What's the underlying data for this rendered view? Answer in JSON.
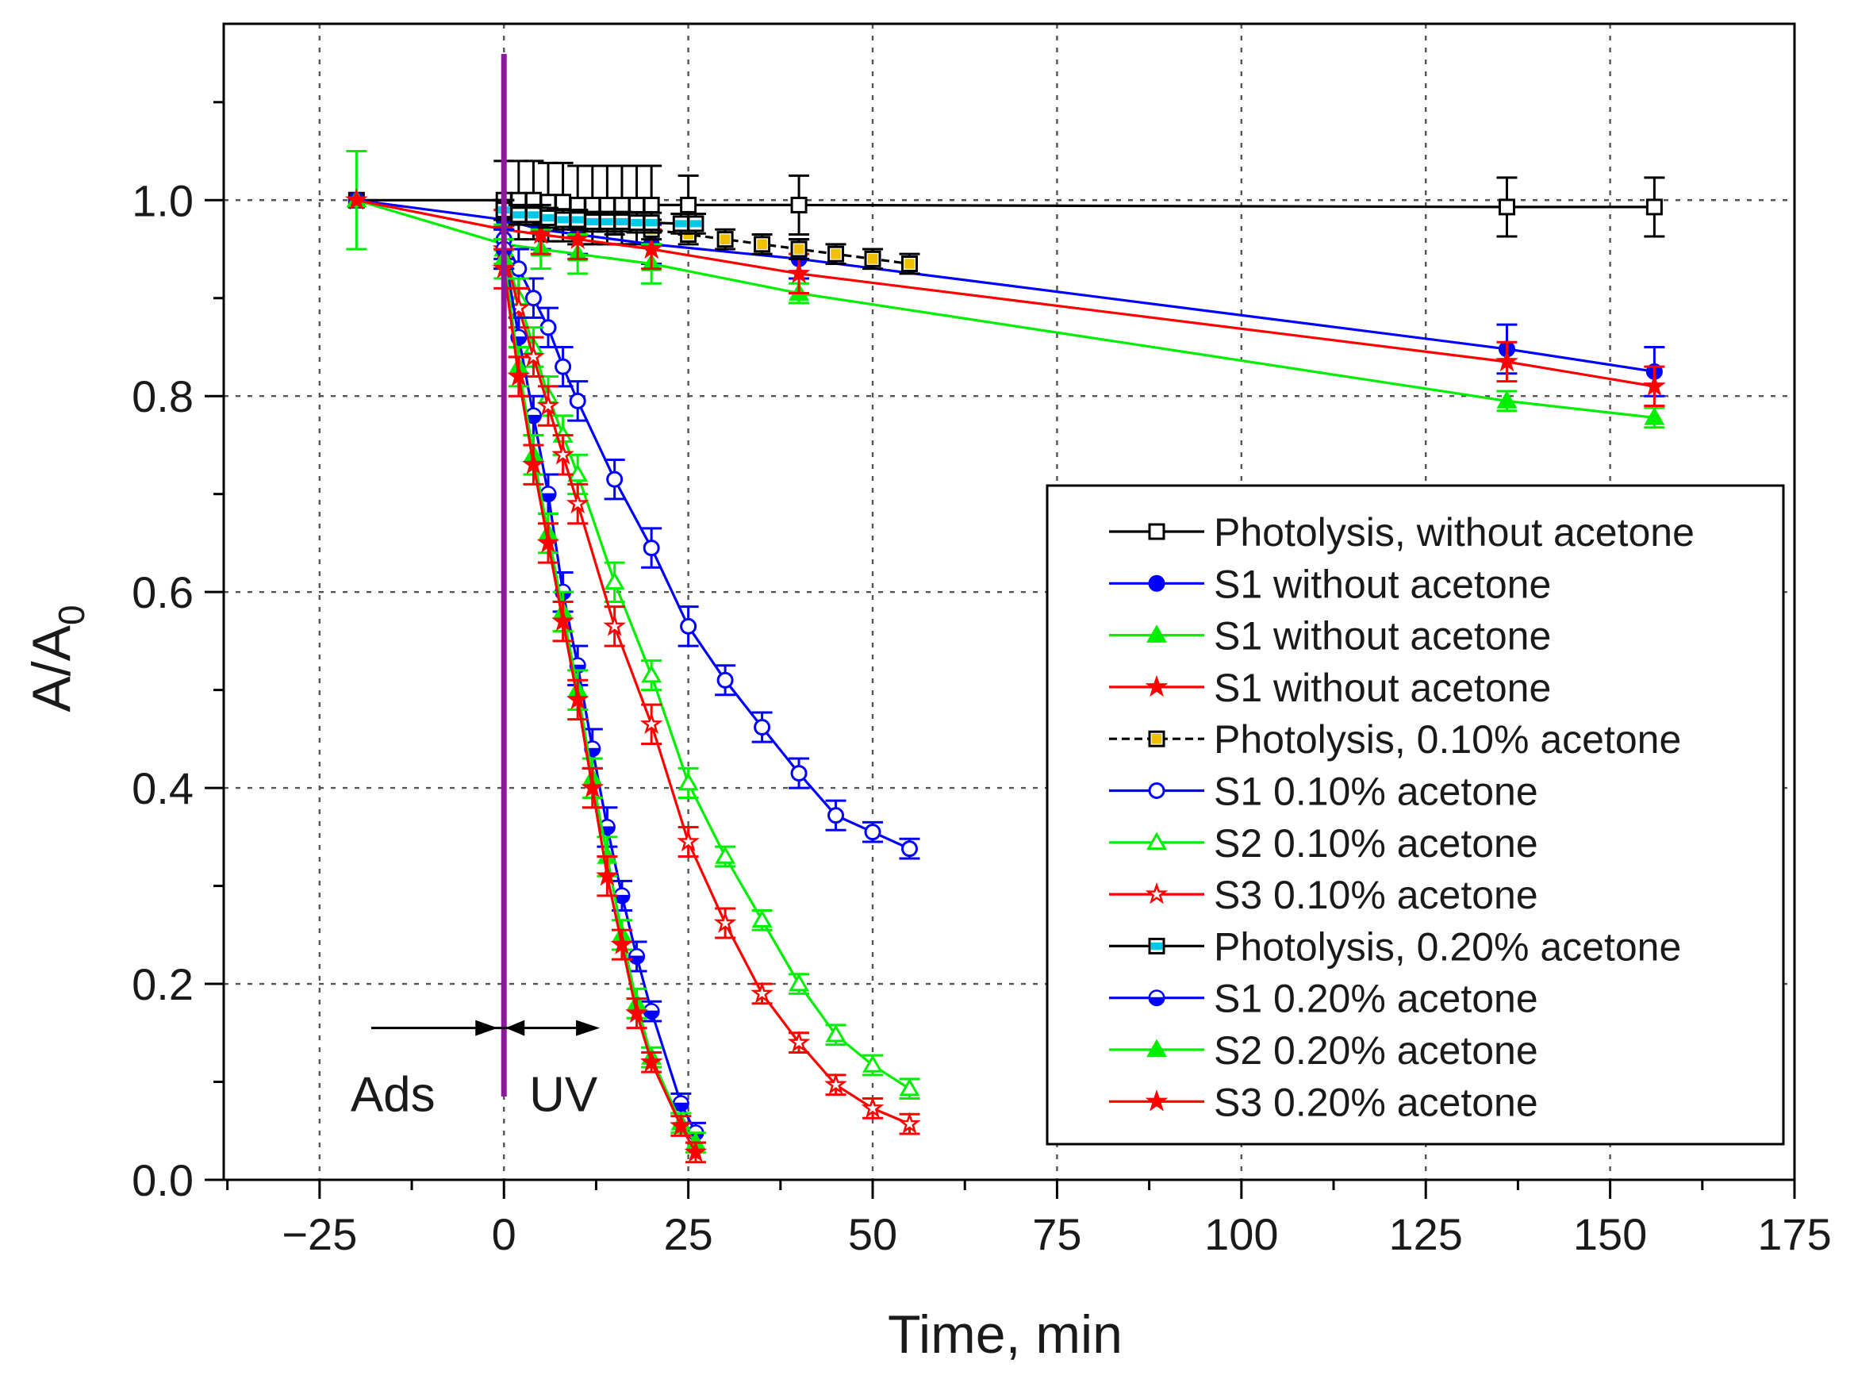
{
  "chart_data": {
    "type": "line",
    "title": "",
    "xlabel": "Time, min",
    "ylabel": "A/A",
    "ylabel_subscript": "0",
    "xlim": [
      -38,
      175
    ],
    "ylim": [
      0.0,
      1.18
    ],
    "xticks": [
      -25,
      0,
      25,
      50,
      75,
      100,
      125,
      150,
      175
    ],
    "xtick_labels": [
      "−25",
      "0",
      "25",
      "50",
      "75",
      "100",
      "125",
      "150",
      "175"
    ],
    "yticks": [
      0.0,
      0.2,
      0.4,
      0.6,
      0.8,
      1.0
    ],
    "ytick_labels": [
      "0.0",
      "0.2",
      "0.4",
      "0.6",
      "0.8",
      "1.0"
    ],
    "grid": true,
    "legend_position": "lower-right",
    "annotations": {
      "uv_line_x": 0,
      "ads_label": "Ads",
      "uv_label": "UV",
      "arrow_y": 0.155
    },
    "series": [
      {
        "name": "Photolysis, without acetone",
        "color": "#000000",
        "marker": "square",
        "filled": false,
        "dashed": false,
        "x": [
          -20,
          0,
          2,
          4,
          6,
          8,
          10,
          12,
          14,
          16,
          18,
          20,
          25,
          40,
          136,
          156
        ],
        "y": [
          1.0,
          1.0,
          1.0,
          1.0,
          0.998,
          0.998,
          0.995,
          0.995,
          0.995,
          0.995,
          0.995,
          0.995,
          0.995,
          0.995,
          0.993,
          0.993
        ],
        "err": [
          0,
          0.04,
          0.04,
          0.04,
          0.04,
          0.04,
          0.04,
          0.04,
          0.04,
          0.04,
          0.04,
          0.04,
          0.03,
          0.03,
          0.03,
          0.03
        ]
      },
      {
        "name": "S1 without acetone",
        "color": "#0000ff",
        "marker": "circle",
        "filled": true,
        "dashed": false,
        "x": [
          -20,
          0,
          5,
          10,
          20,
          40,
          136,
          156
        ],
        "y": [
          1.0,
          0.98,
          0.97,
          0.965,
          0.955,
          0.94,
          0.848,
          0.825
        ],
        "err": [
          0,
          0.02,
          0.02,
          0.02,
          0.02,
          0.02,
          0.025,
          0.025
        ]
      },
      {
        "name": "S1 without acetone",
        "color": "#00ee00",
        "marker": "triangle",
        "filled": true,
        "dashed": false,
        "x": [
          -20,
          0,
          5,
          10,
          20,
          40,
          136,
          156
        ],
        "y": [
          1.0,
          0.955,
          0.95,
          0.945,
          0.935,
          0.905,
          0.795,
          0.778
        ],
        "err": [
          0.05,
          0.02,
          0.02,
          0.02,
          0.02,
          0.01,
          0.01,
          0.01
        ]
      },
      {
        "name": "S1 without acetone",
        "color": "#ff0000",
        "marker": "star",
        "filled": true,
        "dashed": false,
        "x": [
          -20,
          0,
          5,
          10,
          20,
          40,
          136,
          156
        ],
        "y": [
          1.0,
          0.97,
          0.965,
          0.96,
          0.95,
          0.925,
          0.835,
          0.81
        ],
        "err": [
          0,
          0.02,
          0.02,
          0.02,
          0.02,
          0.02,
          0.02,
          0.02
        ]
      },
      {
        "name": "Photolysis, 0.10% acetone",
        "color": "#000000",
        "marker": "square-half",
        "filled": true,
        "dashed": true,
        "x": [
          0,
          5,
          10,
          15,
          20,
          25,
          30,
          35,
          40,
          45,
          50,
          55
        ],
        "y": [
          0.99,
          0.985,
          0.98,
          0.975,
          0.97,
          0.965,
          0.96,
          0.955,
          0.95,
          0.945,
          0.94,
          0.935
        ],
        "err": [
          0.01,
          0.01,
          0.01,
          0.01,
          0.01,
          0.01,
          0.01,
          0.01,
          0.01,
          0.01,
          0.01,
          0.01
        ]
      },
      {
        "name": "S1 0.10% acetone",
        "color": "#0000ff",
        "marker": "circle",
        "filled": false,
        "dashed": false,
        "x": [
          0,
          2,
          4,
          6,
          8,
          10,
          15,
          20,
          25,
          30,
          35,
          40,
          45,
          50,
          55
        ],
        "y": [
          0.96,
          0.93,
          0.9,
          0.87,
          0.83,
          0.795,
          0.715,
          0.645,
          0.565,
          0.51,
          0.462,
          0.415,
          0.372,
          0.355,
          0.338
        ],
        "err": [
          0.02,
          0.02,
          0.02,
          0.02,
          0.02,
          0.02,
          0.02,
          0.02,
          0.02,
          0.015,
          0.015,
          0.015,
          0.015,
          0.01,
          0.01
        ]
      },
      {
        "name": "S2 0.10% acetone",
        "color": "#00ee00",
        "marker": "triangle",
        "filled": false,
        "dashed": false,
        "x": [
          0,
          2,
          4,
          6,
          8,
          10,
          15,
          20,
          25,
          30,
          35,
          40,
          45,
          50,
          55
        ],
        "y": [
          0.95,
          0.9,
          0.85,
          0.8,
          0.76,
          0.72,
          0.61,
          0.515,
          0.405,
          0.33,
          0.265,
          0.2,
          0.148,
          0.117,
          0.093
        ],
        "err": [
          0.02,
          0.02,
          0.02,
          0.02,
          0.02,
          0.02,
          0.02,
          0.015,
          0.015,
          0.01,
          0.01,
          0.01,
          0.01,
          0.01,
          0.01
        ]
      },
      {
        "name": "S3 0.10% acetone",
        "color": "#ff0000",
        "marker": "star",
        "filled": false,
        "dashed": false,
        "x": [
          0,
          2,
          4,
          6,
          8,
          10,
          15,
          20,
          25,
          30,
          35,
          40,
          45,
          50,
          55
        ],
        "y": [
          0.95,
          0.89,
          0.84,
          0.79,
          0.74,
          0.69,
          0.565,
          0.465,
          0.345,
          0.262,
          0.19,
          0.14,
          0.097,
          0.073,
          0.057
        ],
        "err": [
          0.02,
          0.02,
          0.02,
          0.02,
          0.02,
          0.02,
          0.02,
          0.02,
          0.015,
          0.015,
          0.01,
          0.01,
          0.01,
          0.01,
          0.01
        ]
      },
      {
        "name": "Photolysis, 0.20% acetone",
        "color": "#000000",
        "marker": "square-cyan",
        "filled": true,
        "dashed": false,
        "x": [
          0,
          2,
          4,
          6,
          8,
          10,
          12,
          14,
          16,
          18,
          20,
          24,
          26
        ],
        "y": [
          0.99,
          0.985,
          0.985,
          0.982,
          0.98,
          0.98,
          0.978,
          0.978,
          0.978,
          0.977,
          0.977,
          0.976,
          0.976
        ],
        "err": [
          0.01,
          0.01,
          0.01,
          0.01,
          0.01,
          0.01,
          0.01,
          0.01,
          0.01,
          0.01,
          0.01,
          0.01,
          0.01
        ]
      },
      {
        "name": "S1 0.20% acetone",
        "color": "#0000ff",
        "marker": "circle-half",
        "filled": true,
        "dashed": false,
        "x": [
          0,
          2,
          4,
          6,
          8,
          10,
          12,
          14,
          16,
          18,
          20,
          24,
          26
        ],
        "y": [
          0.95,
          0.86,
          0.78,
          0.7,
          0.6,
          0.525,
          0.44,
          0.36,
          0.29,
          0.228,
          0.172,
          0.078,
          0.048
        ],
        "err": [
          0.02,
          0.02,
          0.02,
          0.02,
          0.02,
          0.02,
          0.02,
          0.02,
          0.015,
          0.015,
          0.01,
          0.01,
          0.01
        ]
      },
      {
        "name": "S2 0.20% acetone",
        "color": "#00ee00",
        "marker": "triangle",
        "filled": true,
        "dashed": false,
        "x": [
          0,
          2,
          4,
          6,
          8,
          10,
          12,
          14,
          16,
          18,
          20,
          24,
          26
        ],
        "y": [
          0.94,
          0.83,
          0.74,
          0.66,
          0.58,
          0.5,
          0.41,
          0.33,
          0.25,
          0.18,
          0.125,
          0.058,
          0.038
        ],
        "err": [
          0.02,
          0.02,
          0.02,
          0.02,
          0.02,
          0.02,
          0.02,
          0.02,
          0.015,
          0.015,
          0.01,
          0.01,
          0.01
        ]
      },
      {
        "name": "S3 0.20% acetone",
        "color": "#ff0000",
        "marker": "star",
        "filled": true,
        "dashed": false,
        "x": [
          0,
          2,
          4,
          6,
          8,
          10,
          12,
          14,
          16,
          18,
          20,
          24,
          26
        ],
        "y": [
          0.93,
          0.82,
          0.73,
          0.65,
          0.57,
          0.49,
          0.4,
          0.31,
          0.24,
          0.17,
          0.12,
          0.055,
          0.028
        ],
        "err": [
          0.02,
          0.02,
          0.02,
          0.02,
          0.02,
          0.02,
          0.02,
          0.02,
          0.015,
          0.015,
          0.01,
          0.01,
          0.01
        ]
      }
    ]
  }
}
